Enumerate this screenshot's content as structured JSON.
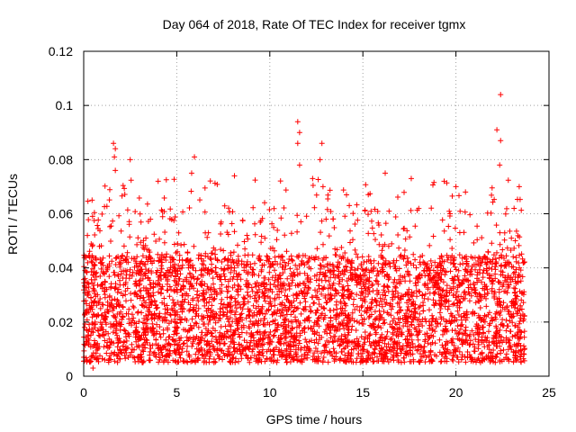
{
  "chart_data": {
    "type": "scatter",
    "title": "Day 064 of 2018, Rate Of TEC Index for receiver tgmx",
    "xlabel": "GPS time / hours",
    "ylabel": "ROTI / TECUs",
    "xlim": [
      0,
      25
    ],
    "ylim": [
      0,
      0.12
    ],
    "xticks": [
      0,
      5,
      10,
      15,
      20,
      25
    ],
    "xtick_labels": [
      "0",
      "5",
      "10",
      "15",
      "20",
      "25"
    ],
    "yticks": [
      0,
      0.02,
      0.04,
      0.06,
      0.08,
      0.1,
      0.12
    ],
    "ytick_labels": [
      "0",
      "0.02",
      "0.04",
      "0.06",
      "0.08",
      "0.1",
      "0.12"
    ],
    "grid": true,
    "marker": "+",
    "color": "#ff0000",
    "series": [
      {
        "name": "ROTI",
        "x_range": [
          0,
          23.7
        ],
        "typical_range": [
          0.005,
          0.045
        ],
        "notable_points": [
          {
            "x": 1.6,
            "y": 0.086
          },
          {
            "x": 1.7,
            "y": 0.084
          },
          {
            "x": 1.65,
            "y": 0.081
          },
          {
            "x": 1.7,
            "y": 0.076
          },
          {
            "x": 2.5,
            "y": 0.08
          },
          {
            "x": 4.0,
            "y": 0.072
          },
          {
            "x": 5.8,
            "y": 0.075
          },
          {
            "x": 5.95,
            "y": 0.081
          },
          {
            "x": 8.1,
            "y": 0.074
          },
          {
            "x": 11.5,
            "y": 0.094
          },
          {
            "x": 11.6,
            "y": 0.09
          },
          {
            "x": 11.5,
            "y": 0.086
          },
          {
            "x": 11.6,
            "y": 0.078
          },
          {
            "x": 12.8,
            "y": 0.086
          },
          {
            "x": 12.7,
            "y": 0.08
          },
          {
            "x": 12.3,
            "y": 0.073
          },
          {
            "x": 16.2,
            "y": 0.075
          },
          {
            "x": 17.6,
            "y": 0.073
          },
          {
            "x": 20.0,
            "y": 0.07
          },
          {
            "x": 22.2,
            "y": 0.091
          },
          {
            "x": 22.4,
            "y": 0.104
          },
          {
            "x": 22.4,
            "y": 0.087
          },
          {
            "x": 22.35,
            "y": 0.078
          },
          {
            "x": 23.4,
            "y": 0.07
          },
          {
            "x": 0.5,
            "y": 0.003
          },
          {
            "x": 0.2,
            "y": 0.052
          }
        ]
      }
    ]
  }
}
